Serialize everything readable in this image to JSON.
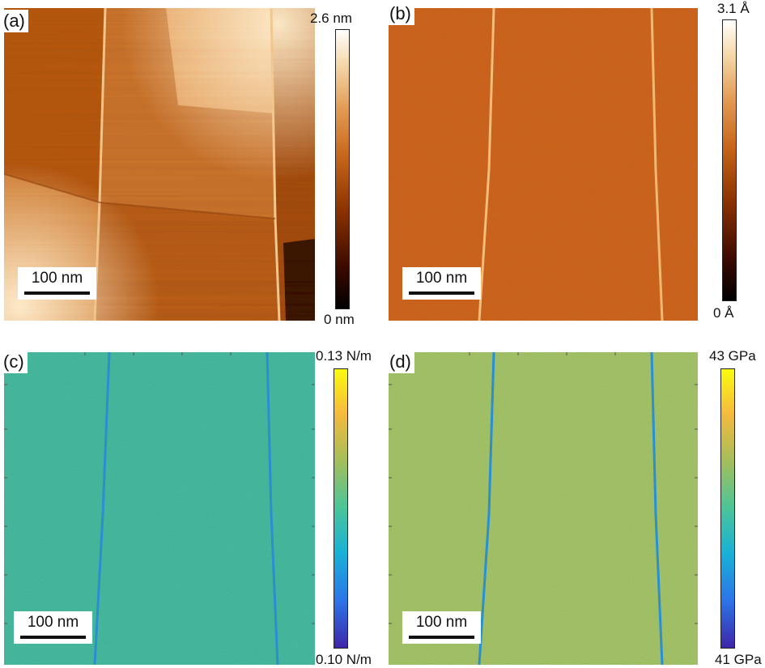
{
  "panels": {
    "a": {
      "label": "(a)",
      "scale_bar": "100 nm",
      "colorbar_max": "2.6 nm",
      "colorbar_min": "0 nm",
      "colormap": [
        "#000000",
        "#3d0a00",
        "#8a3200",
        "#c7671b",
        "#e39c55",
        "#f5d9ac",
        "#ffffff"
      ]
    },
    "b": {
      "label": "(b)",
      "scale_bar": "100 nm",
      "colorbar_max": "3.1 Å",
      "colorbar_min": "0 Å",
      "colormap": [
        "#000000",
        "#3d0a00",
        "#8a3200",
        "#c7671b",
        "#e39c55",
        "#f5d9ac",
        "#ffffff"
      ]
    },
    "c": {
      "label": "(c)",
      "scale_bar": "100 nm",
      "colorbar_max": "0.13 N/m",
      "colorbar_min": "0.10 N/m",
      "colormap": [
        "#3e26a8",
        "#2c75e8",
        "#18b2d6",
        "#4ac59a",
        "#a4be5a",
        "#f6ba3d",
        "#f9fb0e"
      ]
    },
    "d": {
      "label": "(d)",
      "scale_bar": "100 nm",
      "colorbar_max": "43 GPa",
      "colorbar_min": "41 GPa",
      "colormap": [
        "#3e26a8",
        "#2c75e8",
        "#18b2d6",
        "#4ac59a",
        "#a4be5a",
        "#f6ba3d",
        "#f9fb0e"
      ]
    }
  }
}
